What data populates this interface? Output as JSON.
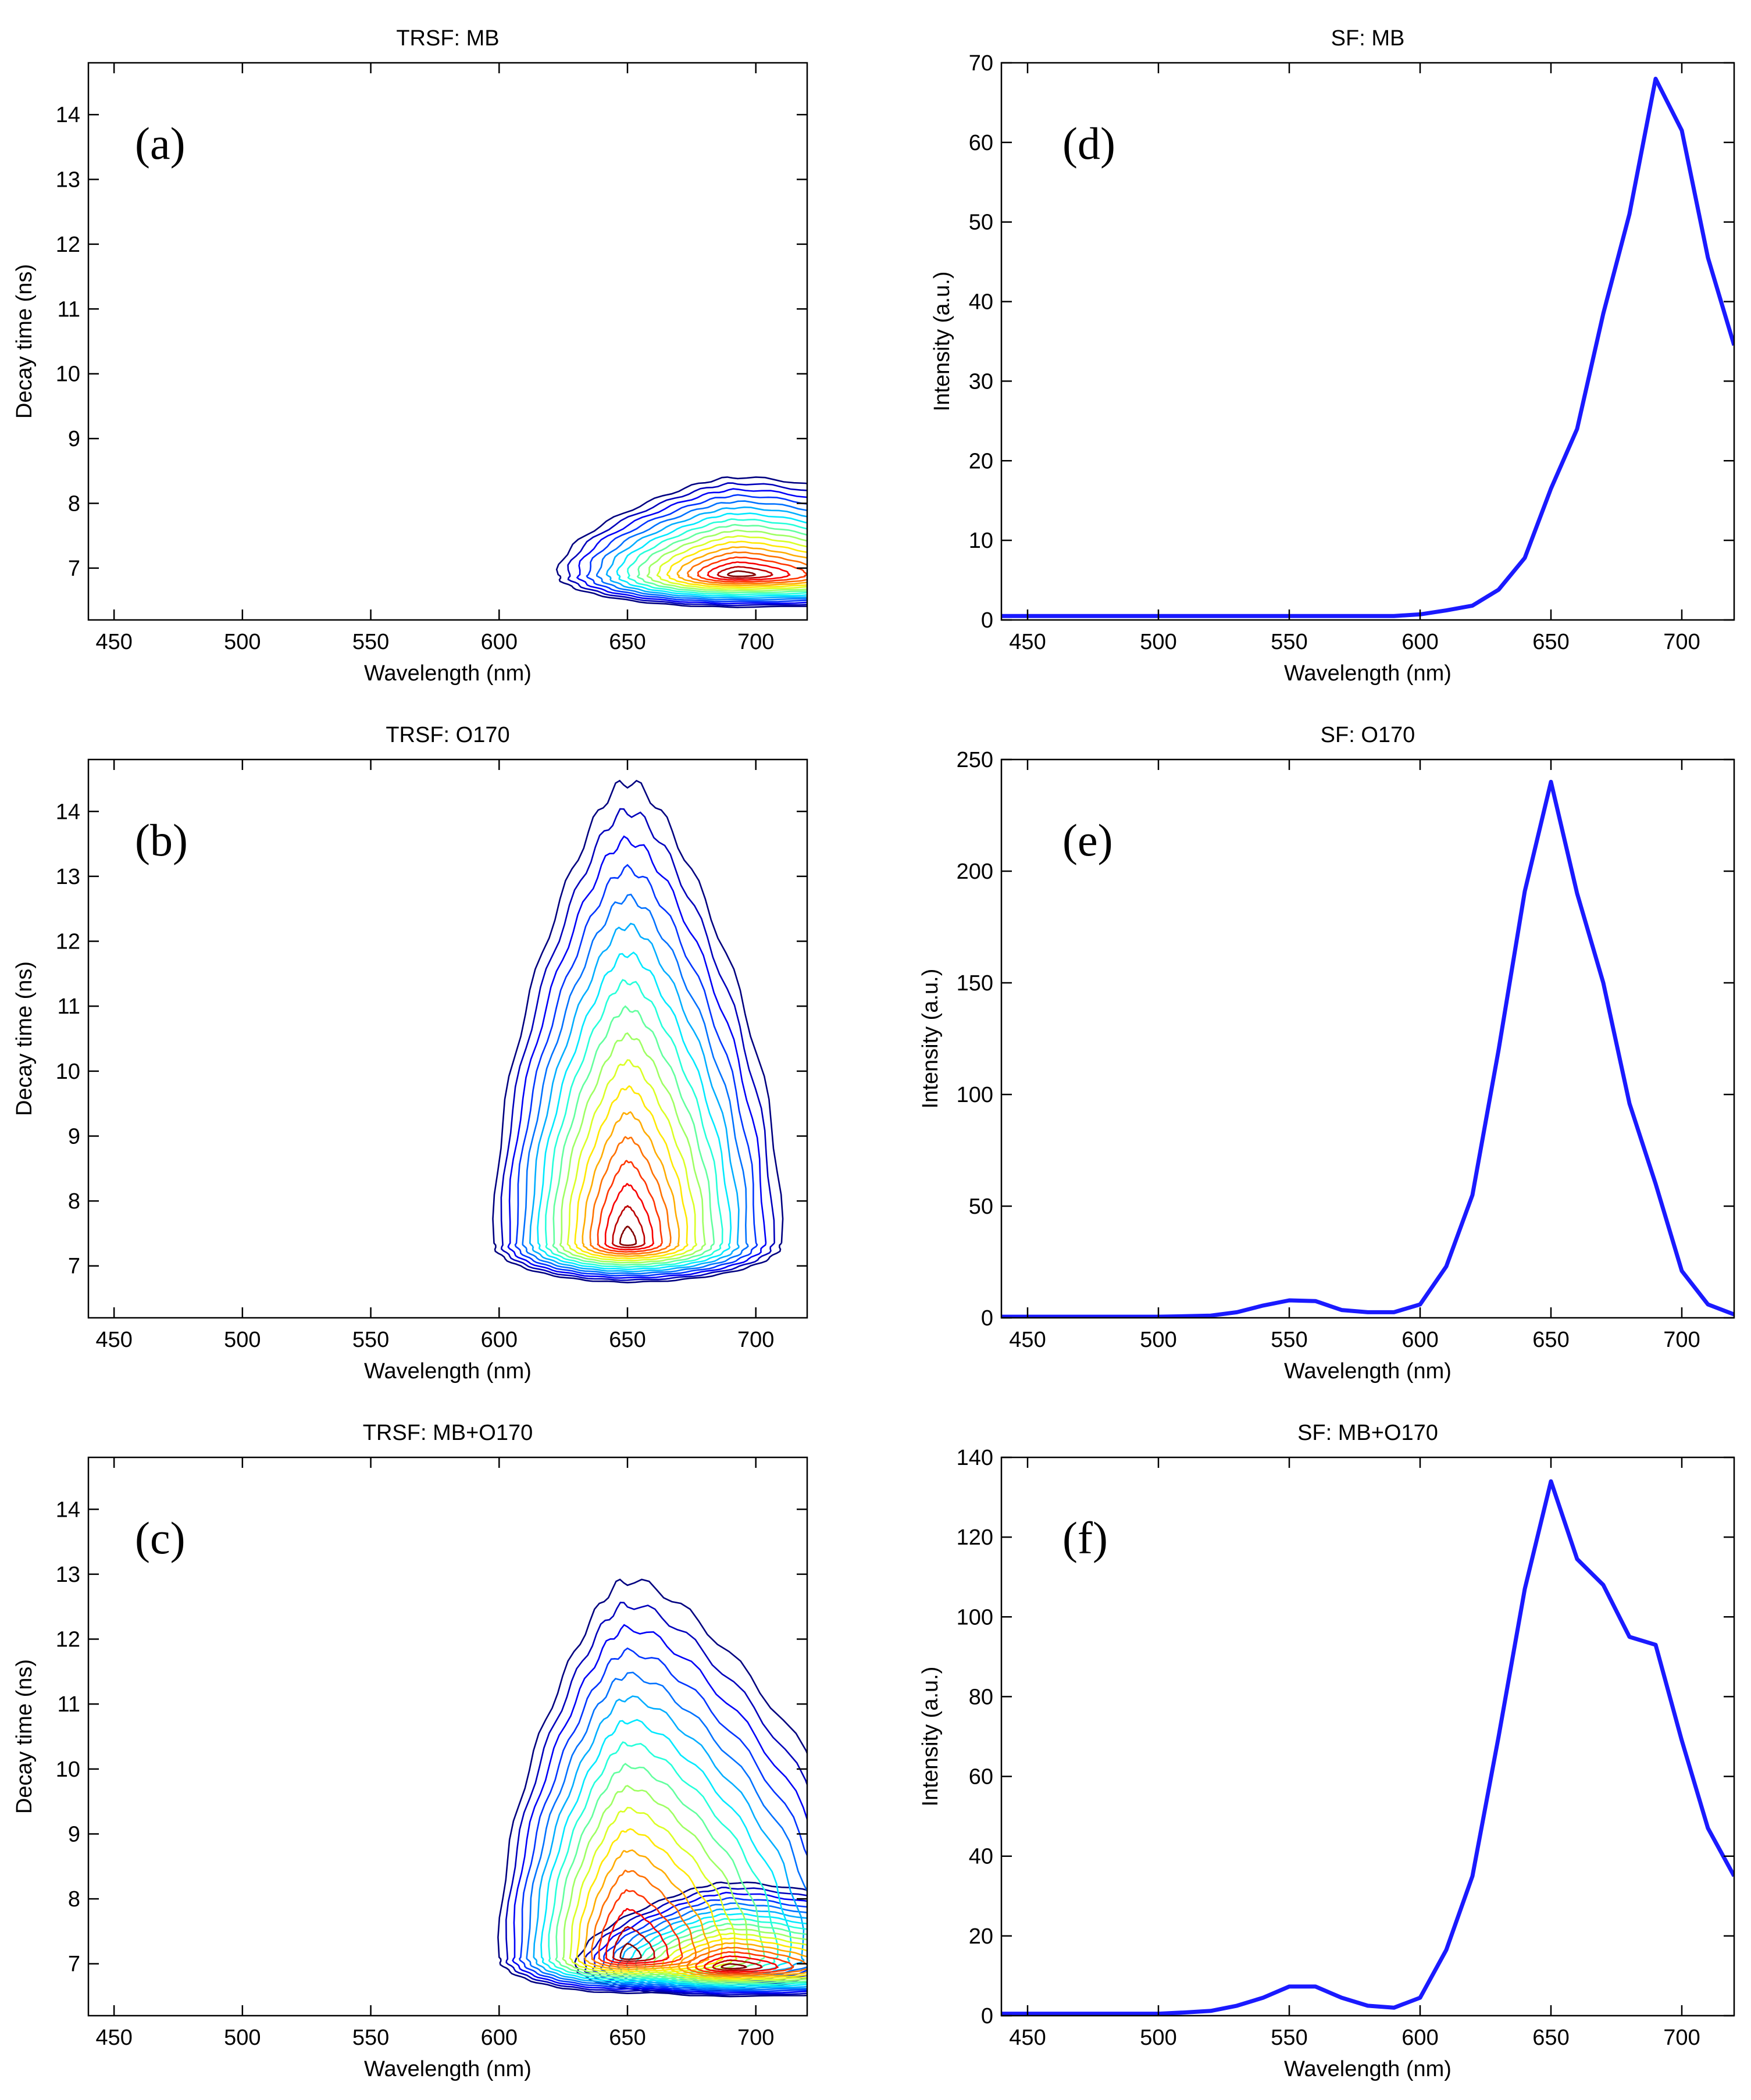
{
  "figure": {
    "panels": [
      {
        "id": "a",
        "kind": "contour",
        "title": "TRSF: MB",
        "letter": "(a)",
        "xlabel": "Wavelength (nm)",
        "ylabel": "Decay time (ns)",
        "xlim": [
          440,
          720
        ],
        "ylim": [
          6.2,
          14.8
        ],
        "xticks": [
          450,
          500,
          550,
          600,
          650,
          700
        ],
        "yticks": [
          7,
          8,
          9,
          10,
          11,
          12,
          13,
          14
        ],
        "contour_levels": 18,
        "peaks": [
          {
            "cx": 693,
            "cy": 6.9,
            "rx_left": 70,
            "rx_right": 120,
            "ry_up": 1.5,
            "ry_down": 0.5
          }
        ]
      },
      {
        "id": "b",
        "kind": "contour",
        "title": "TRSF: O170",
        "letter": "(b)",
        "xlabel": "Wavelength (nm)",
        "ylabel": "Decay time (ns)",
        "xlim": [
          440,
          720
        ],
        "ylim": [
          6.2,
          14.8
        ],
        "xticks": [
          450,
          500,
          550,
          600,
          650,
          700
        ],
        "yticks": [
          7,
          8,
          9,
          10,
          11,
          12,
          13,
          14
        ],
        "contour_levels": 18,
        "peaks": [
          {
            "cx": 650,
            "cy": 7.35,
            "rx_left": 52,
            "rx_right": 60,
            "ry_up": 7.1,
            "ry_down": 0.6
          }
        ]
      },
      {
        "id": "c",
        "kind": "contour",
        "title": "TRSF: MB+O170",
        "letter": "(c)",
        "xlabel": "Wavelength (nm)",
        "ylabel": "Decay time (ns)",
        "xlim": [
          440,
          720
        ],
        "ylim": [
          6.2,
          14.8
        ],
        "xticks": [
          450,
          500,
          550,
          600,
          650,
          700
        ],
        "yticks": [
          7,
          8,
          9,
          10,
          11,
          12,
          13,
          14
        ],
        "contour_levels": 18,
        "peaks": [
          {
            "cx": 650,
            "cy": 7.1,
            "rx_left": 50,
            "rx_right": 95,
            "ry_up": 5.8,
            "ry_down": 0.55
          },
          {
            "cx": 690,
            "cy": 6.95,
            "rx_left": 60,
            "rx_right": 110,
            "ry_up": 1.3,
            "ry_down": 0.45
          }
        ]
      },
      {
        "id": "d",
        "kind": "line",
        "title": "SF: MB",
        "letter": "(d)",
        "xlabel": "Wavelength (nm)",
        "ylabel": "Intensity (a.u.)",
        "xlim": [
          440,
          720
        ],
        "ylim": [
          0,
          70
        ],
        "xticks": [
          450,
          500,
          550,
          600,
          650,
          700
        ],
        "yticks": [
          0,
          10,
          20,
          30,
          40,
          50,
          60,
          70
        ]
      },
      {
        "id": "e",
        "kind": "line",
        "title": "SF: O170",
        "letter": "(e)",
        "xlabel": "Wavelength (nm)",
        "ylabel": "Intensity (a.u.)",
        "xlim": [
          440,
          720
        ],
        "ylim": [
          0,
          250
        ],
        "xticks": [
          450,
          500,
          550,
          600,
          650,
          700
        ],
        "yticks": [
          0,
          50,
          100,
          150,
          200,
          250
        ]
      },
      {
        "id": "f",
        "kind": "line",
        "title": "SF: MB+O170",
        "letter": "(f)",
        "xlabel": "Wavelength (nm)",
        "ylabel": "Intensity (a.u.)",
        "xlim": [
          440,
          720
        ],
        "ylim": [
          0,
          140
        ],
        "xticks": [
          450,
          500,
          550,
          600,
          650,
          700
        ],
        "yticks": [
          0,
          20,
          40,
          60,
          80,
          100,
          120,
          140
        ]
      }
    ]
  },
  "chart_data": [
    {
      "type": "heatmap",
      "panel": "a",
      "title": "TRSF: MB",
      "xlabel": "Wavelength (nm)",
      "ylabel": "Decay time (ns)",
      "xlim": [
        440,
        720
      ],
      "ylim": [
        6.2,
        14.8
      ],
      "description_peak": {
        "wavelength": 693,
        "decay_time": 6.9
      }
    },
    {
      "type": "heatmap",
      "panel": "b",
      "title": "TRSF: O170",
      "xlabel": "Wavelength (nm)",
      "ylabel": "Decay time (ns)",
      "xlim": [
        440,
        720
      ],
      "ylim": [
        6.2,
        14.8
      ],
      "description_peak": {
        "wavelength": 650,
        "decay_time": 7.35
      }
    },
    {
      "type": "heatmap",
      "panel": "c",
      "title": "TRSF: MB+O170",
      "xlabel": "Wavelength (nm)",
      "ylabel": "Decay time (ns)",
      "xlim": [
        440,
        720
      ],
      "ylim": [
        6.2,
        14.8
      ],
      "description_peak": {
        "wavelength": 688,
        "decay_time": 6.95
      }
    },
    {
      "type": "line",
      "panel": "d",
      "title": "SF: MB",
      "xlabel": "Wavelength (nm)",
      "ylabel": "Intensity (a.u.)",
      "xlim": [
        440,
        720
      ],
      "ylim": [
        0,
        70
      ],
      "x": [
        440,
        450,
        460,
        470,
        480,
        490,
        500,
        510,
        520,
        530,
        540,
        550,
        560,
        570,
        580,
        590,
        600,
        610,
        620,
        630,
        640,
        650,
        660,
        670,
        680,
        690,
        700,
        710,
        720
      ],
      "y": [
        0.5,
        0.5,
        0.5,
        0.5,
        0.5,
        0.5,
        0.5,
        0.5,
        0.5,
        0.5,
        0.5,
        0.5,
        0.5,
        0.5,
        0.5,
        0.5,
        0.7,
        1.2,
        1.8,
        3.8,
        7.8,
        16.5,
        24,
        38.5,
        51,
        68,
        61.5,
        45.5,
        34.5
      ]
    },
    {
      "type": "line",
      "panel": "e",
      "title": "SF: O170",
      "xlabel": "Wavelength (nm)",
      "ylabel": "Intensity (a.u.)",
      "xlim": [
        440,
        720
      ],
      "ylim": [
        0,
        250
      ],
      "x": [
        440,
        450,
        460,
        470,
        480,
        490,
        500,
        510,
        520,
        530,
        540,
        550,
        560,
        570,
        580,
        590,
        600,
        610,
        620,
        630,
        640,
        650,
        660,
        670,
        680,
        690,
        700,
        710,
        720
      ],
      "y": [
        0.5,
        0.5,
        0.5,
        0.5,
        0.5,
        0.5,
        0.5,
        0.7,
        1.0,
        2.5,
        5.5,
        7.8,
        7.5,
        3.5,
        2.5,
        2.5,
        6.0,
        23,
        55,
        120,
        191,
        240,
        190,
        150,
        96,
        60,
        21,
        6,
        1.5
      ]
    },
    {
      "type": "line",
      "panel": "f",
      "title": "SF: MB+O170",
      "xlabel": "Wavelength (nm)",
      "ylabel": "Intensity (a.u.)",
      "xlim": [
        440,
        720
      ],
      "ylim": [
        0,
        140
      ],
      "x": [
        440,
        450,
        460,
        470,
        480,
        490,
        500,
        510,
        520,
        530,
        540,
        550,
        560,
        570,
        580,
        590,
        600,
        610,
        620,
        630,
        640,
        650,
        660,
        670,
        680,
        690,
        700,
        710,
        720
      ],
      "y": [
        0.5,
        0.5,
        0.5,
        0.5,
        0.5,
        0.5,
        0.5,
        0.8,
        1.2,
        2.5,
        4.5,
        7.3,
        7.3,
        4.5,
        2.5,
        2.0,
        4.5,
        16.5,
        35,
        70,
        107,
        134,
        114.5,
        108,
        95,
        93,
        69,
        47,
        35
      ]
    }
  ]
}
